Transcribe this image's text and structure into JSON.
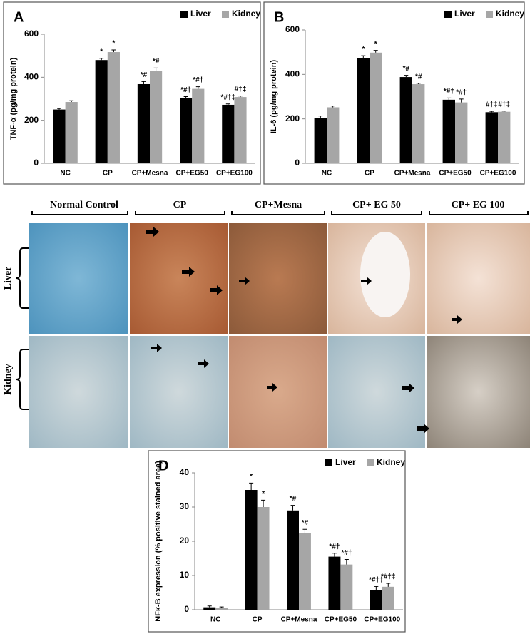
{
  "chart_data": [
    {
      "type": "bar",
      "label": "A",
      "ylabel": "TNF-α (pg/mg protein)",
      "categories": [
        "NC",
        "CP",
        "CP+Mesna",
        "CP+EG50",
        "CP+EG100"
      ],
      "series": [
        {
          "name": "Liver",
          "color": "#000000",
          "values": [
            250,
            480,
            368,
            305,
            272
          ],
          "errors": [
            5,
            8,
            12,
            5,
            4
          ],
          "annotations": [
            null,
            "*",
            "*#",
            "*#†",
            "*#†‡"
          ]
        },
        {
          "name": "Kidney",
          "color": "#a6a6a6",
          "values": [
            285,
            517,
            428,
            346,
            308
          ],
          "errors": [
            6,
            10,
            15,
            10,
            5
          ],
          "annotations": [
            null,
            "*",
            "*#",
            "*#†",
            "#†‡"
          ]
        }
      ],
      "ylim": [
        0,
        600
      ],
      "yticks": [
        0,
        200,
        400,
        600
      ],
      "legend": "top-right"
    },
    {
      "type": "bar",
      "label": "B",
      "ylabel": "IL-6 (pg/mg protein)",
      "categories": [
        "NC",
        "CP",
        "CP+Mesna",
        "CP+EG50",
        "CP+EG100"
      ],
      "series": [
        {
          "name": "Liver",
          "color": "#000000",
          "values": [
            205,
            472,
            388,
            286,
            230
          ],
          "errors": [
            8,
            12,
            8,
            8,
            4
          ],
          "annotations": [
            null,
            "*",
            "*#",
            "*#†",
            "#†‡"
          ]
        },
        {
          "name": "Kidney",
          "color": "#a6a6a6",
          "values": [
            252,
            498,
            356,
            274,
            232
          ],
          "errors": [
            6,
            10,
            4,
            15,
            3
          ],
          "annotations": [
            null,
            "*",
            "*#",
            "*#†",
            "#†‡"
          ]
        }
      ],
      "ylim": [
        0,
        600
      ],
      "yticks": [
        0,
        200,
        400,
        600
      ],
      "legend": "top-right"
    },
    {
      "type": "bar",
      "label": "D",
      "ylabel": "NFκ-B expression (% positive stained area)",
      "categories": [
        "NC",
        "CP",
        "CP+Mesna",
        "CP+EG50",
        "CP+EG100"
      ],
      "series": [
        {
          "name": "Liver",
          "color": "#000000",
          "values": [
            0.7,
            35,
            29,
            15.5,
            5.8
          ],
          "errors": [
            0.4,
            2,
            1.5,
            1,
            1
          ],
          "annotations": [
            null,
            "*",
            "*#",
            "*#†",
            "*#†‡"
          ]
        },
        {
          "name": "Kidney",
          "color": "#a6a6a6",
          "values": [
            0.5,
            30,
            22.5,
            13.2,
            6.7
          ],
          "errors": [
            0.3,
            2,
            1,
            1.5,
            1
          ],
          "annotations": [
            null,
            "*",
            "*#",
            "*#†",
            "*#†‡"
          ]
        }
      ],
      "ylim": [
        0,
        40
      ],
      "yticks": [
        0,
        10,
        20,
        30,
        40
      ],
      "legend": "top-right"
    }
  ],
  "micrograph": {
    "columns": [
      "Normal Control",
      "CP",
      "CP+Mesna",
      "CP+ EG 50",
      "CP+ EG 100"
    ],
    "rows": [
      "Liver",
      "Kidney"
    ]
  }
}
